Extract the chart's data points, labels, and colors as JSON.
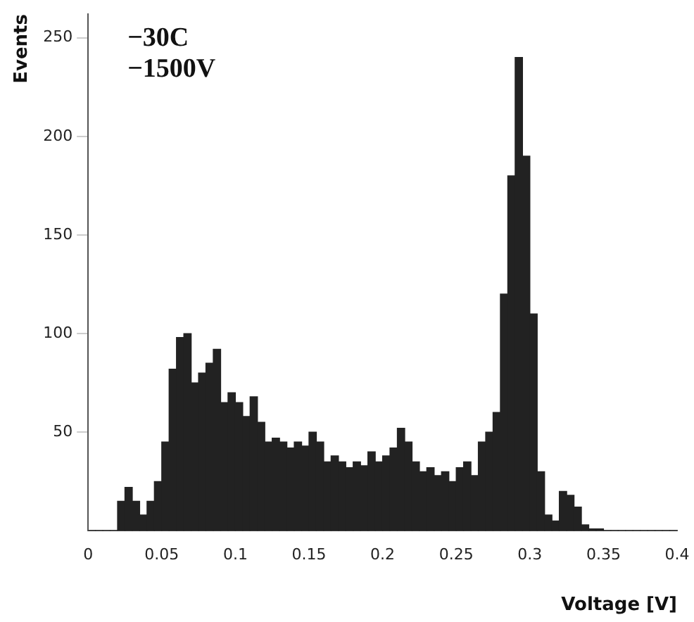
{
  "chart_data": {
    "type": "histogram",
    "xlabel": "Voltage [V]",
    "ylabel": "Events",
    "annotations": [
      "−30C",
      "−1500V"
    ],
    "bins": [
      0,
      0.005,
      0.01,
      0.015,
      0.02,
      0.025,
      0.03,
      0.035,
      0.04,
      0.045,
      0.05,
      0.055,
      0.06,
      0.065,
      0.07,
      0.075,
      0.08,
      0.085,
      0.09,
      0.095,
      0.1,
      0.105,
      0.11,
      0.115,
      0.12,
      0.125,
      0.13,
      0.135,
      0.14,
      0.145,
      0.15,
      0.155,
      0.16,
      0.165,
      0.17,
      0.175,
      0.18,
      0.185,
      0.19,
      0.195,
      0.2,
      0.205,
      0.21,
      0.215,
      0.22,
      0.225,
      0.23,
      0.235,
      0.24,
      0.245,
      0.25,
      0.255,
      0.26,
      0.265,
      0.27,
      0.275,
      0.28,
      0.285,
      0.29,
      0.295,
      0.3,
      0.305,
      0.31,
      0.315,
      0.32,
      0.325,
      0.33,
      0.335,
      0.34,
      0.345,
      0.35,
      0.355,
      0.36,
      0.365,
      0.37,
      0.375,
      0.38,
      0.385,
      0.39,
      0.395,
      0.4
    ],
    "values": [
      0,
      0,
      0,
      0,
      15,
      22,
      15,
      8,
      15,
      25,
      45,
      82,
      98,
      100,
      75,
      80,
      85,
      92,
      65,
      70,
      65,
      58,
      68,
      55,
      45,
      47,
      45,
      42,
      45,
      43,
      50,
      45,
      35,
      38,
      35,
      32,
      35,
      33,
      40,
      35,
      38,
      42,
      52,
      45,
      35,
      30,
      32,
      28,
      30,
      25,
      32,
      35,
      28,
      45,
      50,
      60,
      120,
      180,
      240,
      190,
      110,
      30,
      8,
      5,
      20,
      18,
      12,
      3,
      1,
      1,
      0,
      0,
      0,
      0,
      0,
      0,
      0,
      0,
      0,
      0
    ],
    "color": "#222222",
    "xlim": [
      0,
      0.4
    ],
    "xticks": [
      0,
      0.05,
      0.1,
      0.15,
      0.2,
      0.25,
      0.3,
      0.35,
      0.4
    ],
    "ylim": [
      0,
      262
    ],
    "yticks": [
      50,
      100,
      150,
      200,
      250
    ],
    "grid": false,
    "legend": false
  }
}
